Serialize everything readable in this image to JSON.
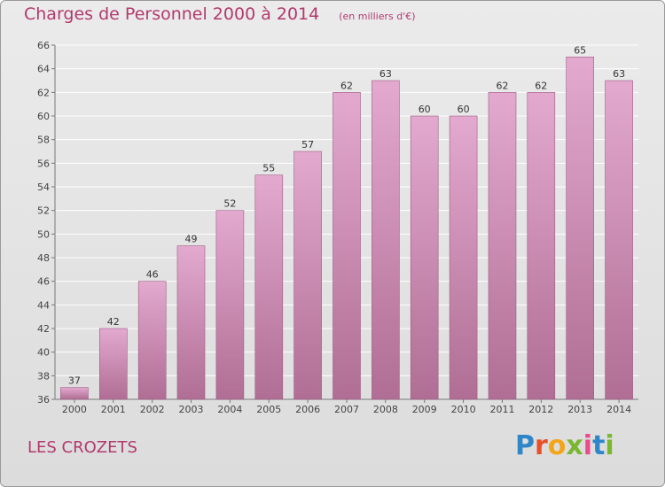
{
  "header": {
    "title": "Charges de Personnel 2000 à 2014",
    "subtitle": "(en milliers d'€)"
  },
  "footer": {
    "commune": "LES CROZETS",
    "logo_text": "Proxiti"
  },
  "colors": {
    "title": "#b2396e",
    "bar_top": "#e3a9cf",
    "bar_bottom": "#b06e94",
    "bar_edge": "#9c5c82",
    "grid": "#ffffff",
    "background": "#e4e4e4"
  },
  "chart_data": {
    "type": "bar",
    "categories": [
      "2000",
      "2001",
      "2002",
      "2003",
      "2004",
      "2005",
      "2006",
      "2007",
      "2008",
      "2009",
      "2010",
      "2011",
      "2012",
      "2013",
      "2014"
    ],
    "values": [
      37,
      42,
      46,
      49,
      52,
      55,
      57,
      62,
      63,
      60,
      60,
      62,
      62,
      65,
      63
    ],
    "title": "Charges de Personnel 2000 à 2014",
    "subtitle": "(en milliers d'€)",
    "xlabel": "",
    "ylabel": "",
    "ylim": [
      36,
      66
    ],
    "yticks": [
      36,
      38,
      40,
      42,
      44,
      46,
      48,
      50,
      52,
      54,
      56,
      58,
      60,
      62,
      64,
      66
    ],
    "grid": true,
    "data_labels": true,
    "legend": "none"
  }
}
